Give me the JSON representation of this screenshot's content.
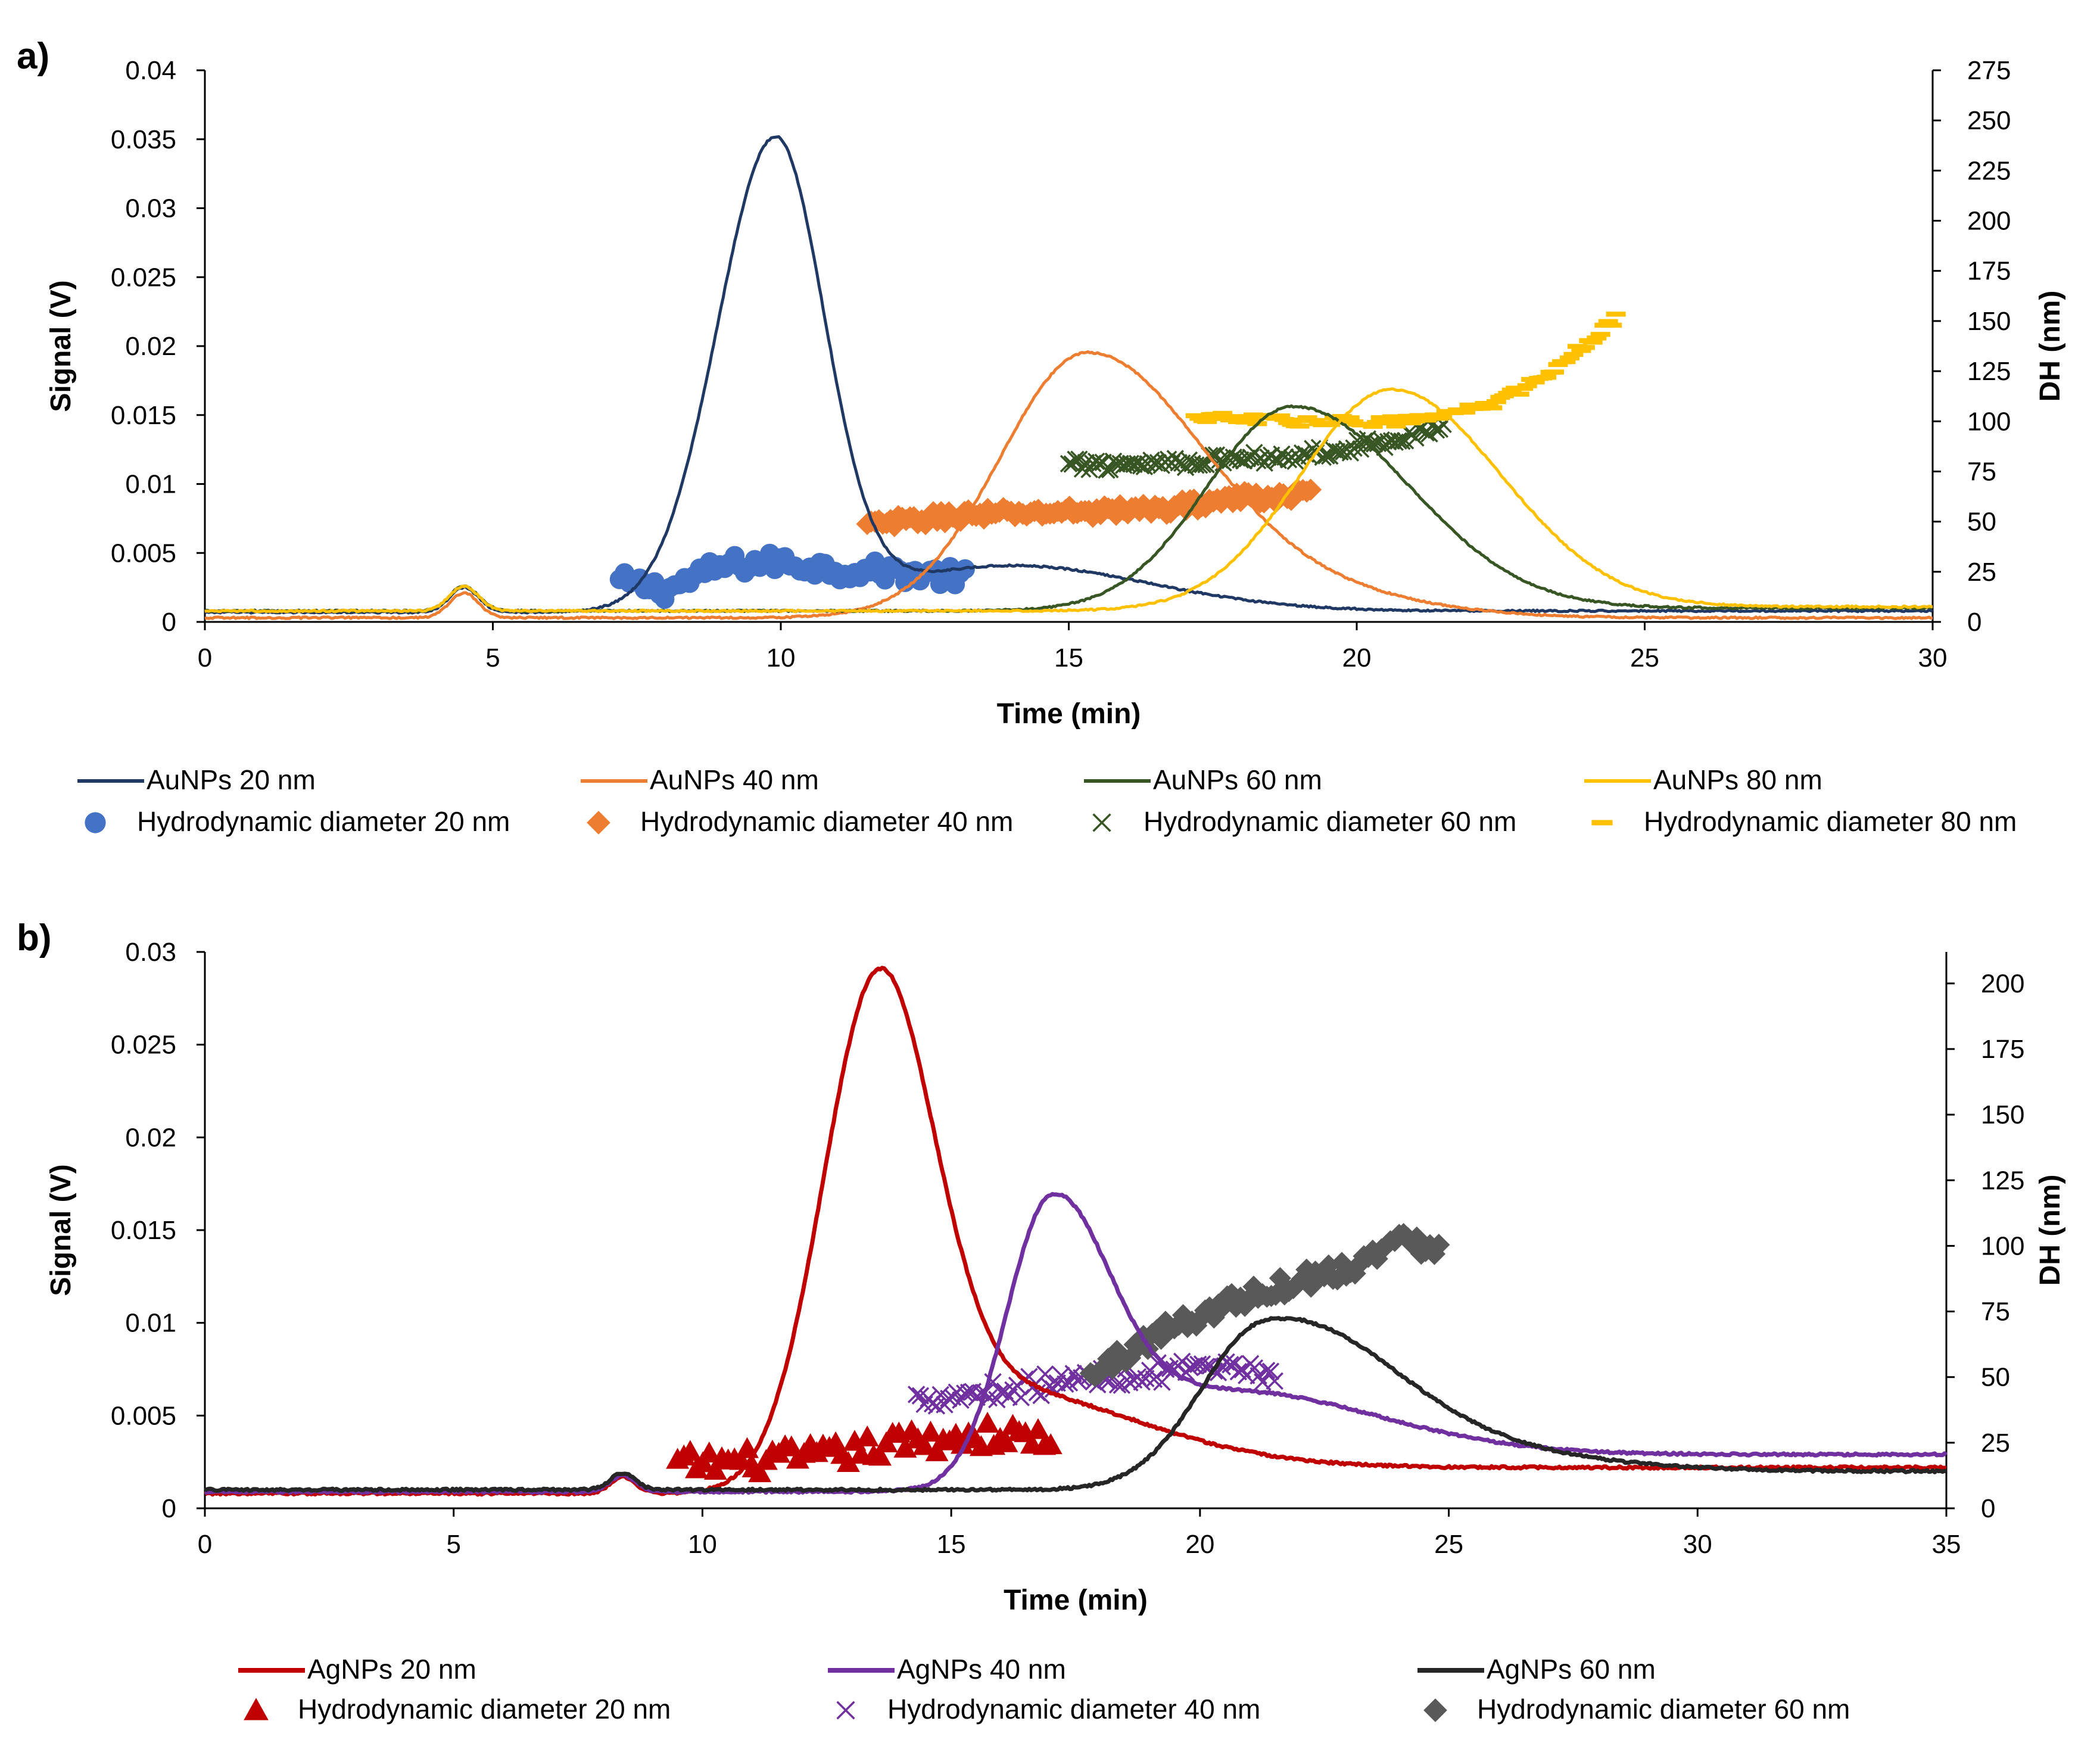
{
  "figure": {
    "panel_labels": [
      "a)",
      "b)"
    ]
  },
  "chart_data": [
    {
      "type": "line",
      "panel": "a)",
      "xlabel": "Time (min)",
      "ylabel": "Signal (V)",
      "y2label": "DH (nm)",
      "xlim": [
        0,
        30
      ],
      "ylim": [
        0,
        0.04
      ],
      "y2lim": [
        0,
        275
      ],
      "x_ticks": [
        "0",
        "5",
        "10",
        "15",
        "20",
        "25",
        "30"
      ],
      "y_ticks": [
        "0",
        "0.005",
        "0.01",
        "0.015",
        "0.02",
        "0.025",
        "0.03",
        "0.035",
        "0.04"
      ],
      "y2_ticks": [
        "0",
        "25",
        "50",
        "75",
        "100",
        "125",
        "150",
        "175",
        "200",
        "225",
        "250",
        "275"
      ],
      "injection_bump": {
        "x": 4.5,
        "height": 0.0018
      },
      "line_series": [
        {
          "name": "AuNPs 20 nm",
          "color": "#1f3864",
          "baseline": 0.0007,
          "peaks": [
            {
              "x": 9.9,
              "h": 0.0339,
              "sl": 1.0,
              "sr": 0.85
            },
            {
              "x": 14.0,
              "h": 0.0033,
              "sl": 2.2,
              "sr": 2.4
            }
          ],
          "tail": 0.0001
        },
        {
          "name": "AuNPs 40 nm",
          "color": "#ed7d31",
          "baseline": 0.0003,
          "peaks": [
            {
              "x": 15.3,
              "h": 0.019,
              "sl": 1.5,
              "sr": 2.0
            },
            {
              "x": 19.2,
              "h": 0.0015,
              "sl": 2.0,
              "sr": 2.0
            }
          ],
          "tail": 0.0
        },
        {
          "name": "AuNPs 60 nm",
          "color": "#375623",
          "baseline": 0.0008,
          "peaks": [
            {
              "x": 18.9,
              "h": 0.0148,
              "sl": 1.5,
              "sr": 2.0
            }
          ],
          "tail": 0.0002
        },
        {
          "name": "AuNPs 80 nm",
          "color": "#ffc000",
          "baseline": 0.0008,
          "peaks": [
            {
              "x": 20.6,
              "h": 0.016,
              "sl": 1.6,
              "sr": 1.9
            }
          ],
          "tail": 0.0003
        }
      ],
      "scatter_series": [
        {
          "name": "Hydrodynamic diameter 20 nm",
          "color": "#4472c4",
          "marker": "circle",
          "x_start": 7.2,
          "x_end": 13.2,
          "count": 70,
          "points": [
            [
              7.2,
              20
            ],
            [
              8.0,
              16
            ],
            [
              9.0,
              28
            ],
            [
              10.0,
              30
            ],
            [
              11.0,
              26
            ],
            [
              12.0,
              25
            ],
            [
              13.2,
              22
            ]
          ],
          "spread": 5
        },
        {
          "name": "Hydrodynamic diameter 40 nm",
          "color": "#ed7d31",
          "marker": "diamond",
          "x_start": 11.5,
          "x_end": 19.2,
          "count": 115,
          "points": [
            [
              11.5,
              48
            ],
            [
              13.0,
              53
            ],
            [
              15.0,
              55
            ],
            [
              16.5,
              56
            ],
            [
              18.0,
              62
            ],
            [
              19.2,
              63
            ]
          ],
          "spread": 3
        },
        {
          "name": "Hydrodynamic diameter 60 nm",
          "color": "#375623",
          "marker": "x",
          "x_start": 15.0,
          "x_end": 21.5,
          "count": 110,
          "points": [
            [
              15.0,
              78
            ],
            [
              17.0,
              80
            ],
            [
              19.0,
              83
            ],
            [
              20.5,
              90
            ],
            [
              21.5,
              98
            ]
          ],
          "spread": 3
        },
        {
          "name": "Hydrodynamic diameter 80 nm",
          "color": "#ffc000",
          "marker": "dash",
          "x_start": 17.2,
          "x_end": 24.5,
          "count": 110,
          "points": [
            [
              17.2,
              102
            ],
            [
              19.0,
              100
            ],
            [
              21.0,
              100
            ],
            [
              22.5,
              110
            ],
            [
              23.5,
              128
            ],
            [
              24.5,
              151
            ]
          ],
          "spread": 2.5
        }
      ],
      "legend": {
        "placement": "bottom",
        "rows": [
          [
            {
              "label": "AuNPs 20 nm",
              "color": "#1f3864",
              "marker": "line"
            },
            {
              "label": "AuNPs 40 nm",
              "color": "#ed7d31",
              "marker": "line"
            },
            {
              "label": "AuNPs 60 nm",
              "color": "#375623",
              "marker": "line"
            },
            {
              "label": "AuNPs 80 nm",
              "color": "#ffc000",
              "marker": "line"
            }
          ],
          [
            {
              "label": "Hydrodynamic diameter 20 nm",
              "color": "#4472c4",
              "marker": "circle"
            },
            {
              "label": "Hydrodynamic diameter 40 nm",
              "color": "#ed7d31",
              "marker": "diamond"
            },
            {
              "label": "Hydrodynamic diameter 60 nm",
              "color": "#375623",
              "marker": "x"
            },
            {
              "label": "Hydrodynamic diameter 80 nm",
              "color": "#ffc000",
              "marker": "dash"
            }
          ]
        ]
      }
    },
    {
      "type": "line",
      "panel": "b)",
      "xlabel": "Time (min)",
      "ylabel": "Signal (V)",
      "y2label": "DH (nm)",
      "xlim": [
        0,
        35
      ],
      "ylim": [
        0,
        0.03
      ],
      "y2lim": [
        0,
        212
      ],
      "x_ticks": [
        "0",
        "5",
        "10",
        "15",
        "20",
        "25",
        "30",
        "35"
      ],
      "y_ticks": [
        "0",
        "0.005",
        "0.01",
        "0.015",
        "0.02",
        "0.025",
        "0.03"
      ],
      "y2_ticks": [
        "0",
        "25",
        "50",
        "75",
        "100",
        "125",
        "150",
        "175",
        "200"
      ],
      "injection_bump": {
        "x": 8.4,
        "height": 0.0009
      },
      "line_series": [
        {
          "name": "AgNPs 20 nm",
          "color": "#c00000",
          "baseline": 0.0008,
          "peaks": [
            {
              "x": 13.5,
              "h": 0.0262,
              "sl": 1.1,
              "sr": 1.1
            },
            {
              "x": 15.5,
              "h": 0.0045,
              "sl": 1.5,
              "sr": 3.0
            }
          ],
          "tail": 0.0014
        },
        {
          "name": "AgNPs 40 nm",
          "color": "#7030a0",
          "baseline": 0.0009,
          "peaks": [
            {
              "x": 17.0,
              "h": 0.015,
              "sl": 0.9,
              "sr": 1.2
            },
            {
              "x": 20.5,
              "h": 0.0035,
              "sl": 2.0,
              "sr": 3.0
            }
          ],
          "tail": 0.002
        },
        {
          "name": "AgNPs 60 nm",
          "color": "#262626",
          "baseline": 0.001,
          "peaks": [
            {
              "x": 21.3,
              "h": 0.0084,
              "sl": 1.3,
              "sr": 2.2
            },
            {
              "x": 24.0,
              "h": 0.0015,
              "sl": 2.0,
              "sr": 3.0
            }
          ],
          "tail": 0.001
        }
      ],
      "scatter_series": [
        {
          "name": "Hydrodynamic diameter 20 nm",
          "color": "#c00000",
          "marker": "triangle",
          "x_start": 9.5,
          "x_end": 17.0,
          "count": 60,
          "points": [
            [
              9.5,
              17
            ],
            [
              11.0,
              18
            ],
            [
              12.5,
              20
            ],
            [
              14.0,
              25
            ],
            [
              15.5,
              28
            ],
            [
              17.0,
              27
            ]
          ],
          "spread": 5
        },
        {
          "name": "Hydrodynamic diameter 40 nm",
          "color": "#7030a0",
          "marker": "x",
          "x_start": 14.3,
          "x_end": 21.5,
          "count": 90,
          "points": [
            [
              14.3,
              42
            ],
            [
              16.0,
              45
            ],
            [
              18.0,
              50
            ],
            [
              19.5,
              52
            ],
            [
              21.5,
              52
            ]
          ],
          "spread": 4
        },
        {
          "name": "Hydrodynamic diameter 60 nm",
          "color": "#595959",
          "marker": "diamond",
          "x_start": 17.8,
          "x_end": 24.8,
          "count": 80,
          "points": [
            [
              17.8,
              50
            ],
            [
              19.0,
              65
            ],
            [
              20.5,
              78
            ],
            [
              22.0,
              87
            ],
            [
              23.0,
              92
            ],
            [
              24.0,
              102
            ],
            [
              24.8,
              100
            ]
          ],
          "spread": 4
        }
      ],
      "legend": {
        "placement": "bottom",
        "rows": [
          [
            {
              "label": "AgNPs 20 nm",
              "color": "#c00000",
              "marker": "line"
            },
            {
              "label": "AgNPs 40 nm",
              "color": "#7030a0",
              "marker": "line"
            },
            {
              "label": "AgNPs 60 nm",
              "color": "#262626",
              "marker": "line"
            }
          ],
          [
            {
              "label": "Hydrodynamic diameter 20 nm",
              "color": "#c00000",
              "marker": "triangle"
            },
            {
              "label": "Hydrodynamic diameter 40 nm",
              "color": "#7030a0",
              "marker": "x"
            },
            {
              "label": "Hydrodynamic diameter 60 nm",
              "color": "#595959",
              "marker": "diamond"
            }
          ]
        ]
      }
    }
  ]
}
